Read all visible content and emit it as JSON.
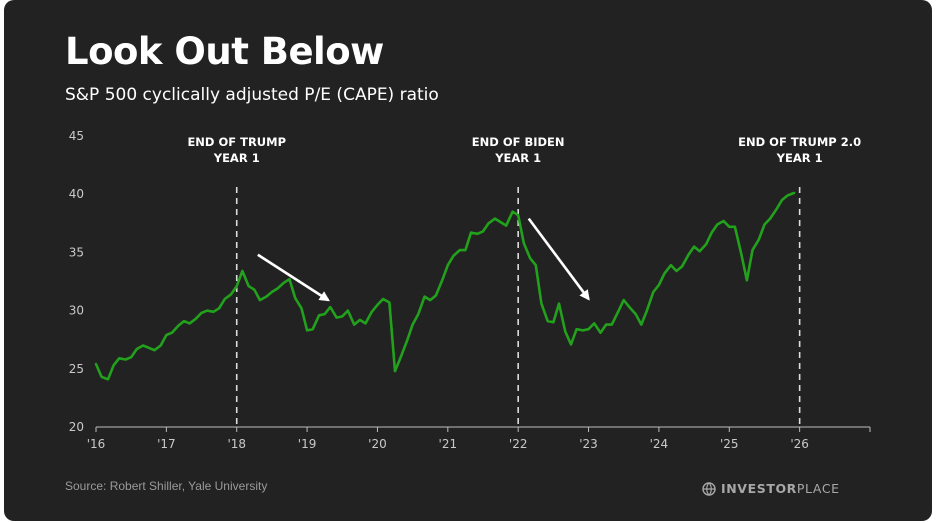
{
  "title": "Look Out Below",
  "subtitle": "S&P 500 cyclically adjusted P/E (CAPE) ratio",
  "source": "Source: Robert Shiller, Yale University",
  "logo": {
    "bold": "INVESTOR",
    "regular": "PLACE",
    "icon": "investorplace-globe-icon"
  },
  "colors": {
    "background": "#222222",
    "line": "#22a11c",
    "text": "#ffffff"
  },
  "chart_data": {
    "type": "line",
    "title": "Look Out Below",
    "subtitle": "S&P 500 cyclically adjusted P/E (CAPE) ratio",
    "xlim": [
      2016,
      2027
    ],
    "ylim": [
      20,
      45
    ],
    "y_ticks": [
      20,
      25,
      30,
      35,
      40,
      45
    ],
    "x_ticks": [
      {
        "value": 2016,
        "label": "'16"
      },
      {
        "value": 2017,
        "label": "'17"
      },
      {
        "value": 2018,
        "label": "'18"
      },
      {
        "value": 2019,
        "label": "'19"
      },
      {
        "value": 2020,
        "label": "'20"
      },
      {
        "value": 2021,
        "label": "'21"
      },
      {
        "value": 2022,
        "label": "'22"
      },
      {
        "value": 2023,
        "label": "'23"
      },
      {
        "value": 2024,
        "label": "'24"
      },
      {
        "value": 2025,
        "label": "'25"
      },
      {
        "value": 2026,
        "label": "'26"
      }
    ],
    "grid": false,
    "series": [
      {
        "x": [
          2016.0,
          2016.08,
          2016.17,
          2016.25,
          2016.33,
          2016.42,
          2016.5,
          2016.58,
          2016.67,
          2016.75,
          2016.83,
          2016.92,
          2017.0,
          2017.08,
          2017.17,
          2017.25,
          2017.33,
          2017.42,
          2017.5,
          2017.58,
          2017.67,
          2017.75,
          2017.83,
          2017.92,
          2018.0,
          2018.08,
          2018.17,
          2018.25,
          2018.33,
          2018.42,
          2018.5,
          2018.58,
          2018.67,
          2018.75,
          2018.83,
          2018.92,
          2019.0,
          2019.08,
          2019.17,
          2019.25,
          2019.33,
          2019.42,
          2019.5,
          2019.58,
          2019.67,
          2019.75,
          2019.83,
          2019.92,
          2020.0,
          2020.08,
          2020.17,
          2020.25,
          2020.33,
          2020.42,
          2020.5,
          2020.58,
          2020.67,
          2020.75,
          2020.83,
          2020.92,
          2021.0,
          2021.08,
          2021.17,
          2021.25,
          2021.33,
          2021.42,
          2021.5,
          2021.58,
          2021.67,
          2021.75,
          2021.83,
          2021.92,
          2022.0,
          2022.08,
          2022.17,
          2022.25,
          2022.33,
          2022.42,
          2022.5,
          2022.58,
          2022.67,
          2022.75,
          2022.83,
          2022.92,
          2023.0,
          2023.08,
          2023.17,
          2023.25,
          2023.33,
          2023.42,
          2023.5,
          2023.58,
          2023.67,
          2023.75,
          2023.83,
          2023.92,
          2024.0,
          2024.08,
          2024.17,
          2024.25,
          2024.33,
          2024.42,
          2024.5,
          2024.58,
          2024.67,
          2024.75,
          2024.83,
          2024.92,
          2025.0,
          2025.08,
          2025.17,
          2025.25,
          2025.33,
          2025.42,
          2025.5,
          2025.58,
          2025.67,
          2025.75,
          2025.83,
          2025.92
        ],
        "y": [
          25.4,
          24.3,
          24.1,
          25.3,
          25.9,
          25.8,
          26.0,
          26.7,
          27.0,
          26.8,
          26.6,
          27.0,
          27.9,
          28.1,
          28.7,
          29.1,
          28.9,
          29.3,
          29.8,
          30.0,
          29.9,
          30.2,
          31.0,
          31.4,
          32.1,
          33.4,
          32.1,
          31.8,
          30.9,
          31.2,
          31.6,
          31.9,
          32.4,
          32.7,
          31.1,
          30.2,
          28.3,
          28.4,
          29.6,
          29.7,
          30.3,
          29.4,
          29.5,
          30.0,
          28.8,
          29.2,
          28.9,
          29.9,
          30.5,
          31.0,
          30.7,
          24.8,
          26.0,
          27.4,
          28.8,
          29.7,
          31.2,
          30.9,
          31.3,
          32.6,
          33.9,
          34.7,
          35.2,
          35.2,
          36.7,
          36.6,
          36.8,
          37.5,
          37.9,
          37.6,
          37.3,
          38.5,
          38.2,
          35.8,
          34.5,
          33.9,
          30.6,
          29.1,
          29.0,
          30.6,
          28.2,
          27.1,
          28.4,
          28.3,
          28.4,
          28.9,
          28.1,
          28.8,
          28.8,
          29.9,
          30.9,
          30.3,
          29.7,
          28.8,
          30.0,
          31.6,
          32.2,
          33.2,
          33.9,
          33.4,
          33.8,
          34.8,
          35.5,
          35.1,
          35.7,
          36.7,
          37.4,
          37.7,
          37.2,
          37.2,
          34.9,
          32.6,
          35.2,
          36.1,
          37.4,
          37.9,
          38.7,
          39.5,
          39.9,
          40.1
        ]
      }
    ],
    "vertical_lines": [
      {
        "x": 2018,
        "label_line1": "END OF TRUMP",
        "label_line2": "YEAR 1"
      },
      {
        "x": 2022,
        "label_line1": "END OF BIDEN",
        "label_line2": "YEAR 1"
      },
      {
        "x": 2026,
        "label_line1": "END OF TRUMP 2.0",
        "label_line2": "YEAR 1"
      }
    ],
    "arrows": [
      {
        "from": [
          2018.3,
          34.8
        ],
        "to": [
          2019.3,
          30.9
        ]
      },
      {
        "from": [
          2022.15,
          37.9
        ],
        "to": [
          2023.0,
          31.0
        ]
      }
    ]
  }
}
